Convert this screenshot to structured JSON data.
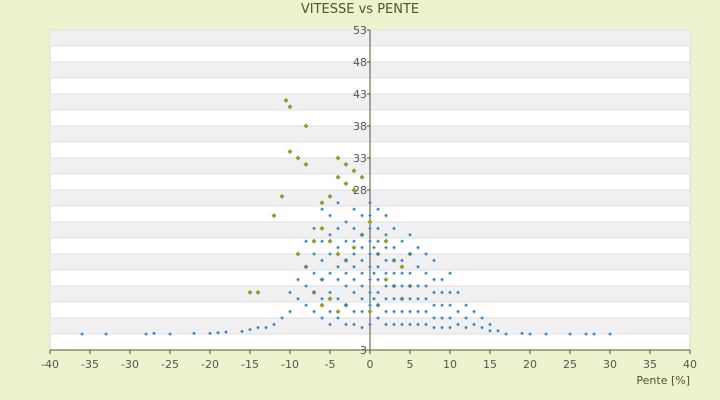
{
  "chart_data": {
    "type": "scatter",
    "title": "VITESSE vs PENTE",
    "xlabel": "Pente [%]",
    "ylabel": "",
    "xlim": [
      -40,
      40
    ],
    "ylim": [
      3,
      53
    ],
    "xticks": [
      "-40",
      "-35",
      "-30",
      "-25",
      "-20",
      "-15",
      "-10",
      "-5",
      "0",
      "5",
      "10",
      "15",
      "20",
      "25",
      "30",
      "35",
      "40"
    ],
    "yticks": [
      "3",
      "8",
      "13",
      "18",
      "23",
      "28",
      "33",
      "38",
      "43",
      "48",
      "53"
    ],
    "ytick_labels_shown": [
      "53",
      "48",
      "43",
      "38",
      "33",
      "28",
      "3"
    ],
    "grid": true,
    "colors": {
      "background": "#eef2cf",
      "plot": "#ffffff",
      "band": "#f0f0f0",
      "primary": "#2f86d0",
      "secondary": "#9aa21e",
      "axis": "#555533"
    },
    "series": [
      {
        "color": "#2f86d0",
        "points": [
          [
            -36,
            5.5
          ],
          [
            -33,
            5.5
          ],
          [
            -28,
            5.5
          ],
          [
            -27,
            5.6
          ],
          [
            -25,
            5.5
          ],
          [
            -22,
            5.6
          ],
          [
            -20,
            5.6
          ],
          [
            -19,
            5.7
          ],
          [
            -18,
            5.8
          ],
          [
            -16,
            5.9
          ],
          [
            -15,
            6.2
          ],
          [
            -14,
            6.5
          ],
          [
            -13,
            6.5
          ],
          [
            -12,
            7
          ],
          [
            -11,
            8
          ],
          [
            -10,
            9
          ],
          [
            -10,
            12
          ],
          [
            -9,
            11
          ],
          [
            -9,
            14
          ],
          [
            -8,
            10
          ],
          [
            -8,
            13
          ],
          [
            -8,
            16
          ],
          [
            -8,
            20
          ],
          [
            -7,
            9
          ],
          [
            -7,
            12
          ],
          [
            -7,
            15
          ],
          [
            -7,
            18
          ],
          [
            -7,
            22
          ],
          [
            -6,
            8
          ],
          [
            -6,
            11
          ],
          [
            -6,
            14
          ],
          [
            -6,
            17
          ],
          [
            -6,
            20
          ],
          [
            -6,
            25
          ],
          [
            -5,
            7
          ],
          [
            -5,
            9
          ],
          [
            -5,
            12
          ],
          [
            -5,
            15
          ],
          [
            -5,
            18
          ],
          [
            -5,
            21
          ],
          [
            -5,
            24
          ],
          [
            -4,
            8
          ],
          [
            -4,
            11
          ],
          [
            -4,
            14
          ],
          [
            -4,
            16
          ],
          [
            -4,
            19
          ],
          [
            -4,
            22
          ],
          [
            -4,
            26
          ],
          [
            -3,
            7
          ],
          [
            -3,
            10
          ],
          [
            -3,
            13
          ],
          [
            -3,
            15
          ],
          [
            -3,
            17
          ],
          [
            -3,
            20
          ],
          [
            -3,
            23
          ],
          [
            -2,
            7
          ],
          [
            -2,
            9
          ],
          [
            -2,
            12
          ],
          [
            -2,
            14
          ],
          [
            -2,
            16
          ],
          [
            -2,
            18
          ],
          [
            -2,
            20
          ],
          [
            -2,
            22
          ],
          [
            -2,
            25
          ],
          [
            -1,
            6.5
          ],
          [
            -1,
            9
          ],
          [
            -1,
            11
          ],
          [
            -1,
            13
          ],
          [
            -1,
            15
          ],
          [
            -1,
            17
          ],
          [
            -1,
            19
          ],
          [
            -1,
            21
          ],
          [
            -1,
            24
          ],
          [
            0,
            7
          ],
          [
            0,
            10
          ],
          [
            0,
            12
          ],
          [
            0,
            14
          ],
          [
            0,
            16
          ],
          [
            0,
            18
          ],
          [
            0,
            20
          ],
          [
            0,
            22
          ],
          [
            0,
            24
          ],
          [
            0,
            26
          ],
          [
            0.5,
            11
          ],
          [
            0.5,
            15
          ],
          [
            0.5,
            19
          ],
          [
            1,
            8
          ],
          [
            1,
            10
          ],
          [
            1,
            12
          ],
          [
            1,
            14
          ],
          [
            1,
            16
          ],
          [
            1,
            18
          ],
          [
            1,
            20
          ],
          [
            1,
            22
          ],
          [
            1,
            25
          ],
          [
            2,
            7
          ],
          [
            2,
            9
          ],
          [
            2,
            11
          ],
          [
            2,
            13
          ],
          [
            2,
            15
          ],
          [
            2,
            17
          ],
          [
            2,
            19
          ],
          [
            2,
            21
          ],
          [
            2,
            24
          ],
          [
            3,
            7
          ],
          [
            3,
            9
          ],
          [
            3,
            11
          ],
          [
            3,
            13
          ],
          [
            3,
            15
          ],
          [
            3,
            17
          ],
          [
            3,
            19
          ],
          [
            3,
            22
          ],
          [
            4,
            7
          ],
          [
            4,
            9
          ],
          [
            4,
            11
          ],
          [
            4,
            13
          ],
          [
            4,
            15
          ],
          [
            4,
            17
          ],
          [
            4,
            20
          ],
          [
            5,
            7
          ],
          [
            5,
            9
          ],
          [
            5,
            11
          ],
          [
            5,
            13
          ],
          [
            5,
            15
          ],
          [
            5,
            18
          ],
          [
            5,
            21
          ],
          [
            6,
            7
          ],
          [
            6,
            9
          ],
          [
            6,
            11
          ],
          [
            6,
            13
          ],
          [
            6,
            16
          ],
          [
            6,
            19
          ],
          [
            7,
            7
          ],
          [
            7,
            9
          ],
          [
            7,
            11
          ],
          [
            7,
            13
          ],
          [
            7,
            15
          ],
          [
            7,
            18
          ],
          [
            8,
            6.5
          ],
          [
            8,
            8
          ],
          [
            8,
            10
          ],
          [
            8,
            12
          ],
          [
            8,
            14
          ],
          [
            8,
            17
          ],
          [
            9,
            6.5
          ],
          [
            9,
            8
          ],
          [
            9,
            10
          ],
          [
            9,
            12
          ],
          [
            9,
            14
          ],
          [
            10,
            6.5
          ],
          [
            10,
            8
          ],
          [
            10,
            10
          ],
          [
            10,
            12
          ],
          [
            10,
            15
          ],
          [
            11,
            7
          ],
          [
            11,
            9
          ],
          [
            11,
            12
          ],
          [
            12,
            6.5
          ],
          [
            12,
            8
          ],
          [
            12,
            10
          ],
          [
            13,
            7
          ],
          [
            13,
            9
          ],
          [
            14,
            6.5
          ],
          [
            14,
            8
          ],
          [
            15,
            6
          ],
          [
            15,
            7
          ],
          [
            16,
            6
          ],
          [
            17,
            5.5
          ],
          [
            19,
            5.6
          ],
          [
            20,
            5.5
          ],
          [
            22,
            5.5
          ],
          [
            25,
            5.5
          ],
          [
            27,
            5.5
          ],
          [
            28,
            5.5
          ],
          [
            30,
            5.5
          ]
        ]
      },
      {
        "color": "#9aa21e",
        "points": [
          [
            -10.5,
            42
          ],
          [
            -10,
            41
          ],
          [
            -8,
            38
          ],
          [
            -10,
            34
          ],
          [
            -9,
            33
          ],
          [
            -8,
            32
          ],
          [
            -4,
            33
          ],
          [
            -3,
            32
          ],
          [
            -2,
            31
          ],
          [
            -3,
            29
          ],
          [
            -2,
            28
          ],
          [
            -1,
            30
          ],
          [
            -4,
            30
          ],
          [
            -5,
            27
          ],
          [
            -6,
            26
          ],
          [
            -12,
            24
          ],
          [
            -11,
            27
          ],
          [
            -6,
            22
          ],
          [
            -5,
            20
          ],
          [
            -4,
            18
          ],
          [
            -3,
            17
          ],
          [
            -2,
            19
          ],
          [
            -1,
            21
          ],
          [
            0,
            23
          ],
          [
            1,
            18
          ],
          [
            2,
            20
          ],
          [
            3,
            17
          ],
          [
            4,
            16
          ],
          [
            5,
            18
          ],
          [
            2,
            14
          ],
          [
            3,
            13
          ],
          [
            -6,
            14
          ],
          [
            -7,
            12
          ],
          [
            -8,
            16
          ],
          [
            -14,
            12
          ],
          [
            -15,
            12
          ],
          [
            -5,
            11
          ],
          [
            -3,
            10
          ],
          [
            0,
            9
          ],
          [
            1,
            10
          ],
          [
            4,
            11
          ],
          [
            5,
            13
          ],
          [
            -9,
            18
          ],
          [
            -7,
            20
          ],
          [
            -6,
            10
          ],
          [
            -4,
            9
          ]
        ]
      }
    ]
  }
}
